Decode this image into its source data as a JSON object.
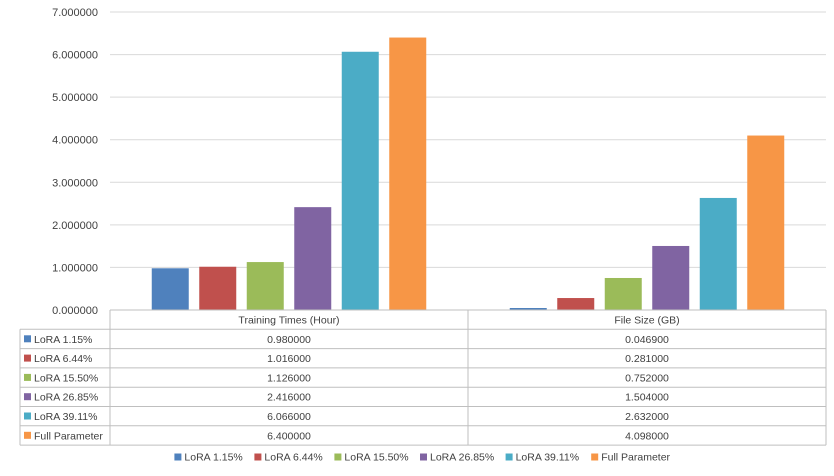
{
  "chart_data": {
    "type": "bar",
    "categories": [
      "Training Times (Hour)",
      "File Size (GB)"
    ],
    "series": [
      {
        "name": "LoRA 1.15%",
        "values": [
          0.98,
          0.0469
        ],
        "labels": [
          "0.980000",
          "0.046900"
        ],
        "color": "#4f81bd"
      },
      {
        "name": "LoRA 6.44%",
        "values": [
          1.016,
          0.281
        ],
        "labels": [
          "1.016000",
          "0.281000"
        ],
        "color": "#c0504d"
      },
      {
        "name": "LoRA 15.50%",
        "values": [
          1.126,
          0.752
        ],
        "labels": [
          "1.126000",
          "0.752000"
        ],
        "color": "#9bbb59"
      },
      {
        "name": "LoRA 26.85%",
        "values": [
          2.416,
          1.504
        ],
        "labels": [
          "2.416000",
          "1.504000"
        ],
        "color": "#8064a2"
      },
      {
        "name": "LoRA 39.11%",
        "values": [
          6.066,
          2.632
        ],
        "labels": [
          "6.066000",
          "2.632000"
        ],
        "color": "#4bacc6"
      },
      {
        "name": "Full Parameter",
        "values": [
          6.4,
          4.098
        ],
        "labels": [
          "6.400000",
          "4.098000"
        ],
        "color": "#f79646"
      }
    ],
    "yticks": [
      "0.000000",
      "1.000000",
      "2.000000",
      "3.000000",
      "4.000000",
      "5.000000",
      "6.000000",
      "7.000000"
    ],
    "ylim": [
      0,
      7
    ],
    "grid": true,
    "data_table": true,
    "legend": "bottom",
    "gridline_color": "#d9d9d9",
    "axis_color": "#bfbfbf"
  }
}
